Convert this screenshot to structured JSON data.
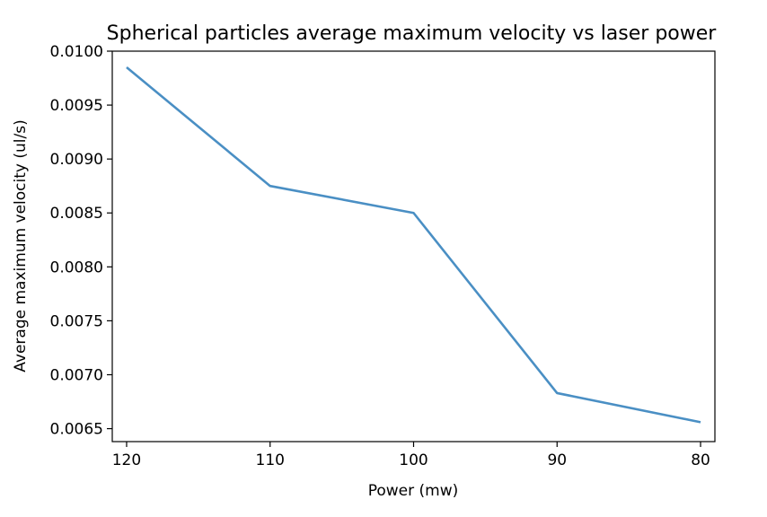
{
  "chart_data": {
    "type": "line",
    "title": "Spherical particles average maximum velocity vs laser power",
    "xlabel": "Power (mw)",
    "ylabel": "Average maximum velocity (ul/s)",
    "x": [
      120,
      110,
      100,
      90,
      80
    ],
    "x_axis_inverted": true,
    "xlim": [
      121,
      79
    ],
    "ylim": [
      0.00638,
      0.01
    ],
    "xticks": [
      120,
      110,
      100,
      90,
      80
    ],
    "xtick_labels": [
      "120",
      "110",
      "100",
      "90",
      "80"
    ],
    "yticks": [
      0.0065,
      0.007,
      0.0075,
      0.008,
      0.0085,
      0.009,
      0.0095,
      0.01
    ],
    "ytick_labels": [
      "0.0065",
      "0.0070",
      "0.0075",
      "0.0080",
      "0.0085",
      "0.0090",
      "0.0095",
      "0.0100"
    ],
    "series": [
      {
        "color": "#4a8fc4",
        "values": [
          0.00985,
          0.00875,
          0.0085,
          0.00683,
          0.00656
        ]
      }
    ],
    "grid": false,
    "legend": "none"
  }
}
